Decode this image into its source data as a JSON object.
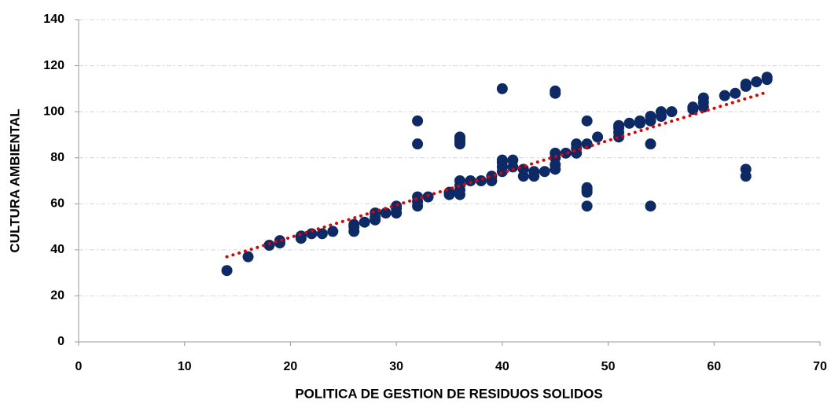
{
  "chart_data": {
    "type": "scatter",
    "xlabel": "POLITICA DE GESTION DE RESIDUOS SOLIDOS",
    "ylabel": "CULTURA AMBIENTAL",
    "x": [
      14,
      16,
      18,
      19,
      19,
      21,
      21,
      22,
      23,
      24,
      26,
      26,
      26,
      27,
      28,
      28,
      28,
      29,
      30,
      30,
      30,
      32,
      32,
      32,
      32,
      32,
      33,
      35,
      35,
      36,
      36,
      36,
      36,
      36,
      36,
      36,
      36,
      37,
      38,
      39,
      39,
      40,
      40,
      40,
      40,
      40,
      41,
      41,
      42,
      42,
      43,
      43,
      44,
      45,
      45,
      45,
      45,
      45,
      45,
      46,
      47,
      47,
      47,
      48,
      48,
      48,
      48,
      48,
      48,
      49,
      51,
      51,
      51,
      51,
      52,
      53,
      53,
      54,
      54,
      54,
      54,
      55,
      55,
      56,
      58,
      58,
      59,
      59,
      59,
      61,
      62,
      63,
      63,
      63,
      63,
      64,
      65,
      65
    ],
    "values": [
      31,
      37,
      42,
      43,
      44,
      45,
      46,
      47,
      47,
      48,
      48,
      50,
      51,
      52,
      53,
      54,
      56,
      56,
      56,
      58,
      59,
      59,
      61,
      63,
      86,
      96,
      63,
      64,
      65,
      64,
      66,
      68,
      70,
      86,
      87,
      88,
      89,
      70,
      70,
      70,
      72,
      74,
      76,
      78,
      79,
      110,
      76,
      79,
      72,
      75,
      72,
      74,
      74,
      75,
      77,
      80,
      82,
      108,
      109,
      82,
      82,
      84,
      86,
      59,
      65,
      66,
      67,
      86,
      96,
      89,
      89,
      91,
      93,
      94,
      95,
      95,
      96,
      59,
      86,
      96,
      98,
      98,
      100,
      100,
      101,
      102,
      102,
      104,
      106,
      107,
      108,
      72,
      75,
      111,
      112,
      113,
      114,
      115
    ],
    "color": "#0d2a66",
    "trendline": {
      "x": [
        14,
        65
      ],
      "values": [
        37,
        108.5
      ],
      "color": "#e00000"
    },
    "xlim": [
      0,
      70
    ],
    "xticks": [
      0,
      10,
      20,
      30,
      40,
      50,
      60,
      70
    ],
    "ylim": [
      0,
      140
    ],
    "yticks": [
      0,
      20,
      40,
      60,
      80,
      100,
      120,
      140
    ],
    "grid": true
  }
}
